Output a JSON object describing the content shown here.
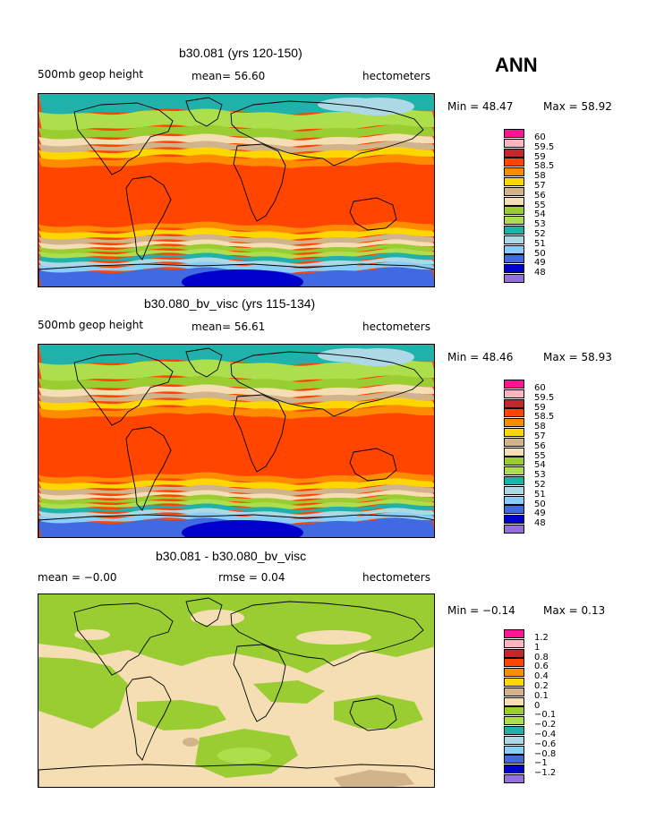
{
  "season": "ANN",
  "colors": [
    "#ff1493",
    "#ffb6c1",
    "#b22222",
    "#ff4500",
    "#ff8c00",
    "#ffd700",
    "#ffef78",
    "#d2b48c",
    "#f5deb3",
    "#9acd32",
    "#addf4c",
    "#20b2aa",
    "#add8e6",
    "#87cefa",
    "#4169e1",
    "#0000cd",
    "#9370db"
  ],
  "panels": [
    {
      "title": "b30.081 (yrs 120-150)",
      "left_label": "500mb geop height",
      "middle_label": "mean=  56.60",
      "units": "hectometers",
      "min_text": "Min =  48.47",
      "max_text": "Max =  58.92",
      "legend_labels": [
        "60",
        "59.5",
        "59",
        "58.5",
        "58",
        "57",
        "56",
        "55",
        "54",
        "53",
        "52",
        "51",
        "50",
        "49",
        "48"
      ],
      "legend_colors": [
        "#ff1493",
        "#ffb6c1",
        "#c1272d",
        "#ff4500",
        "#ff8c00",
        "#ffd700",
        "#d2b48c",
        "#f5deb3",
        "#9acd32",
        "#addf4c",
        "#20b2aa",
        "#add8e6",
        "#87cefa",
        "#4169e1",
        "#0000cd",
        "#9370db"
      ],
      "field": "height"
    },
    {
      "title": "b30.080_bv_visc (yrs 115-134)",
      "left_label": "500mb geop height",
      "middle_label": "mean=  56.61",
      "units": "hectometers",
      "min_text": "Min =  48.46",
      "max_text": "Max =  58.93",
      "legend_labels": [
        "60",
        "59.5",
        "59",
        "58.5",
        "58",
        "57",
        "56",
        "55",
        "54",
        "53",
        "52",
        "51",
        "50",
        "49",
        "48"
      ],
      "legend_colors": [
        "#ff1493",
        "#ffb6c1",
        "#c1272d",
        "#ff4500",
        "#ff8c00",
        "#ffd700",
        "#d2b48c",
        "#f5deb3",
        "#9acd32",
        "#addf4c",
        "#20b2aa",
        "#add8e6",
        "#87cefa",
        "#4169e1",
        "#0000cd",
        "#9370db"
      ],
      "field": "height"
    },
    {
      "title": "b30.081 - b30.080_bv_visc",
      "left_label": "mean =  −0.00",
      "middle_label": "rmse =   0.04",
      "units": "hectometers",
      "min_text": "Min =  −0.14",
      "max_text": "Max =   0.13",
      "legend_labels": [
        "1.2",
        "1",
        "0.8",
        "0.6",
        "0.4",
        "0.2",
        "0.1",
        "0",
        "−0.1",
        "−0.2",
        "−0.4",
        "−0.6",
        "−0.8",
        "−1",
        "−1.2"
      ],
      "legend_colors": [
        "#ff1493",
        "#ffb6c1",
        "#c1272d",
        "#ff4500",
        "#ff8c00",
        "#ffd700",
        "#d2b48c",
        "#f5deb3",
        "#9acd32",
        "#addf4c",
        "#20b2aa",
        "#add8e6",
        "#87cefa",
        "#4169e1",
        "#0000cd",
        "#9370db"
      ],
      "field": "diff"
    }
  ]
}
